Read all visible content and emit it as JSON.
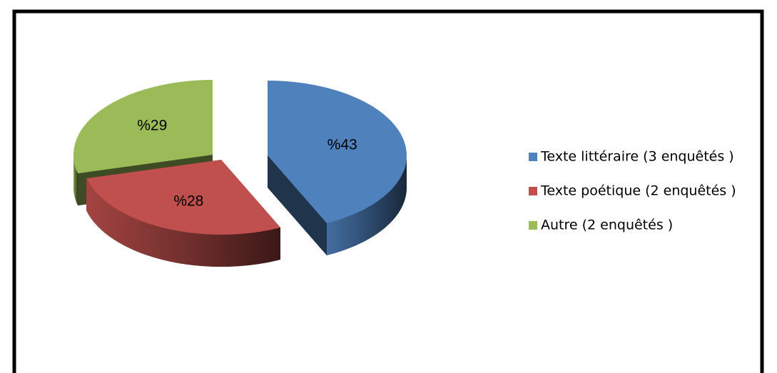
{
  "chart_data": {
    "type": "pie",
    "categories": [
      "Texte littéraire (3 enquêtés )",
      "Texte poétique (2 enquêtés )",
      "Autre (2 enquêtés )"
    ],
    "values": [
      43,
      28,
      29
    ],
    "value_labels": [
      "%43",
      "%28",
      "%29"
    ],
    "colors": [
      "#4f81bd",
      "#c0504d",
      "#9bbb59"
    ],
    "legend": "right"
  }
}
